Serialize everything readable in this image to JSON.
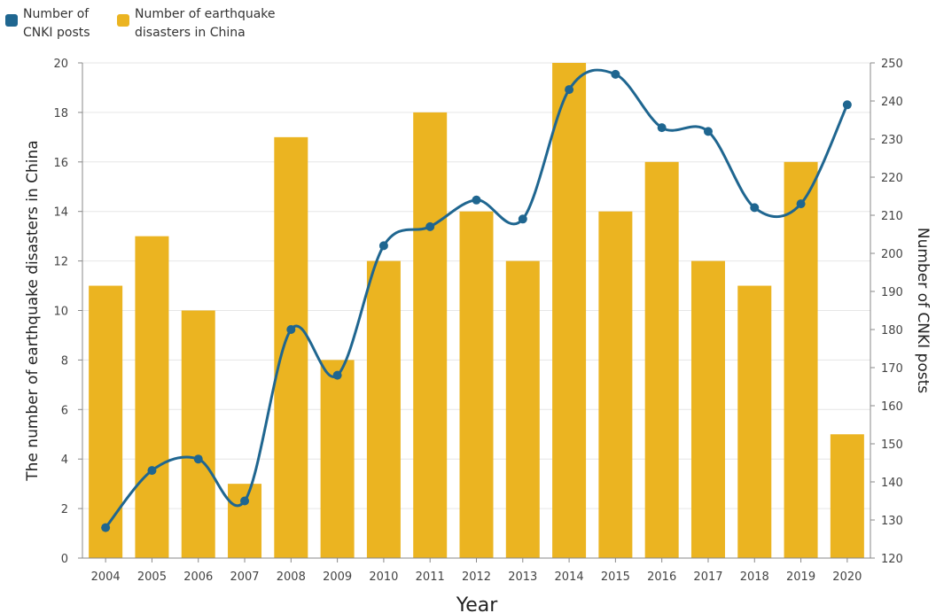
{
  "legend": {
    "cnki_label": "Number of CNKI posts",
    "quake_label": "Number of earthquake disasters in China"
  },
  "chart_data": {
    "type": "bar",
    "categories": [
      "2004",
      "2005",
      "2006",
      "2007",
      "2008",
      "2009",
      "2010",
      "2011",
      "2012",
      "2013",
      "2014",
      "2015",
      "2016",
      "2017",
      "2018",
      "2019",
      "2020"
    ],
    "series": [
      {
        "name": "Number of earthquake disasters in China",
        "type": "bar",
        "axis": "left",
        "color": "#EBB421",
        "values": [
          11,
          13,
          10,
          3,
          17,
          8,
          12,
          18,
          14,
          12,
          20,
          14,
          16,
          12,
          11,
          16,
          5
        ]
      },
      {
        "name": "Number of CNKI posts",
        "type": "line",
        "axis": "right",
        "color": "#1F6690",
        "values": [
          128,
          143,
          146,
          135,
          180,
          168,
          202,
          207,
          214,
          209,
          243,
          247,
          233,
          232,
          212,
          213,
          239
        ]
      }
    ],
    "xlabel": "Year",
    "ylabel": "The number of earthquake disasters in China",
    "y2label": "Number of CNKI posts",
    "ylim": [
      0,
      20
    ],
    "y2lim": [
      120,
      250
    ],
    "yticks": [
      0,
      2,
      4,
      6,
      8,
      10,
      12,
      14,
      16,
      18,
      20
    ],
    "y2ticks": [
      120,
      130,
      140,
      150,
      160,
      170,
      180,
      190,
      200,
      210,
      220,
      230,
      240,
      250
    ],
    "grid": true,
    "legend_position": "top-left"
  }
}
